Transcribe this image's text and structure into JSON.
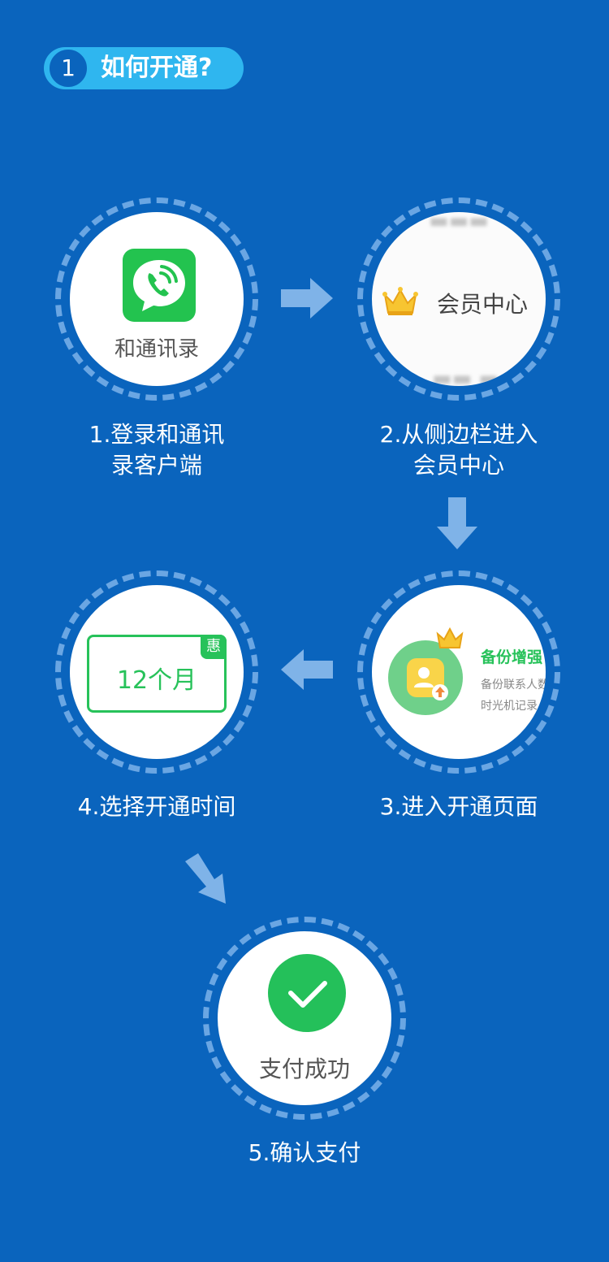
{
  "header": {
    "number": "1",
    "title": "如何开通?"
  },
  "colors": {
    "background": "#0a64bd",
    "pill": "#2fb6ef",
    "dashed_ring": "#6aa6e3",
    "green": "#27c25a"
  },
  "steps": [
    {
      "label_line1": "1.登录和通讯",
      "label_line2": "录客户端",
      "app_name": "和通讯录",
      "icon": "phone-chat-icon"
    },
    {
      "label_line1": "2.从侧边栏进入",
      "label_line2": "会员中心",
      "menu_text": "会员中心",
      "icon": "crown-icon"
    },
    {
      "label": "3.进入开通页面",
      "feature_title": "备份增强",
      "feature_desc1": "备份联系人数",
      "feature_desc2": "时光机记录",
      "icon": "contact-backup-icon"
    },
    {
      "label": "4.选择开通时间",
      "plan_text": "12个月",
      "badge": "惠"
    },
    {
      "label": "5.确认支付",
      "status_text": "支付成功",
      "icon": "check-icon"
    }
  ]
}
